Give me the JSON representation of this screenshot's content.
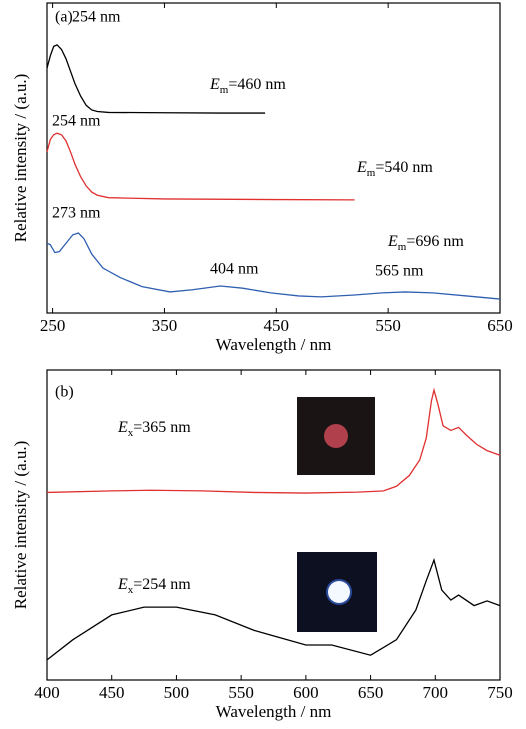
{
  "chart_data": [
    {
      "type": "line",
      "x_label": "Wavelength / nm",
      "y_label": "Relative intensity / (a.u.)",
      "xlim": [
        245,
        650
      ],
      "xticks": [
        250,
        350,
        450,
        550,
        650
      ],
      "ylim": [
        0,
        100
      ],
      "annotations": [
        "(a)",
        "254 nm",
        {
          "main": "E",
          "sub": "m",
          "rest": "=460 nm"
        },
        "254 nm",
        {
          "main": "E",
          "sub": "m",
          "rest": "=540 nm"
        },
        "273 nm",
        {
          "main": "E",
          "sub": "m",
          "rest": "=696 nm"
        },
        "404 nm",
        "565 nm"
      ],
      "series": [
        {
          "color": "#000000",
          "x": [
            245,
            248,
            251,
            254,
            258,
            262,
            266,
            270,
            275,
            280,
            285,
            290,
            300,
            350,
            400,
            440
          ],
          "values": [
            79,
            83,
            86,
            86.5,
            85,
            82,
            78,
            74,
            70,
            67,
            65.5,
            65,
            64.7,
            64.6,
            64.5,
            64.5
          ]
        },
        {
          "color": "#e03030",
          "x": [
            245,
            248,
            251,
            254,
            258,
            262,
            266,
            270,
            275,
            280,
            285,
            290,
            300,
            350,
            450,
            520
          ],
          "values": [
            52,
            56,
            57.5,
            58,
            57.5,
            55.5,
            52,
            48,
            44,
            41,
            39,
            38,
            37.2,
            36.8,
            36.6,
            36.5
          ]
        },
        {
          "color": "#2f5fb0",
          "x": [
            245,
            248,
            252,
            256,
            262,
            268,
            273,
            278,
            285,
            295,
            310,
            330,
            355,
            375,
            400,
            420,
            445,
            470,
            490,
            520,
            545,
            565,
            590,
            620,
            650
          ],
          "values": [
            22.5,
            22,
            19.5,
            19.8,
            22.5,
            25.2,
            25.8,
            24,
            19,
            14.5,
            11.5,
            8.5,
            6.8,
            7.5,
            8.7,
            8,
            6.5,
            5.5,
            5.2,
            5.8,
            6.5,
            6.8,
            6.5,
            5.5,
            4.5
          ]
        }
      ]
    },
    {
      "type": "line",
      "x_label": "Wavelength / nm",
      "y_label": "Relative intensity / (a.u.)",
      "xlim": [
        400,
        750
      ],
      "xticks": [
        400,
        450,
        500,
        550,
        600,
        650,
        700,
        750
      ],
      "ylim": [
        0,
        100
      ],
      "annotations": [
        "(b)",
        {
          "main": "E",
          "sub": "x",
          "rest": "=365 nm"
        },
        {
          "main": "E",
          "sub": "x",
          "rest": "=254 nm"
        }
      ],
      "series": [
        {
          "color": "#e03030",
          "x": [
            400,
            450,
            480,
            520,
            560,
            600,
            640,
            660,
            670,
            680,
            688,
            693,
            697,
            699,
            702,
            706,
            712,
            718,
            724,
            732,
            740,
            750
          ],
          "values": [
            60.5,
            61,
            61.2,
            61,
            60.5,
            60.3,
            60.6,
            61,
            62.5,
            66,
            71,
            78,
            90,
            93.5,
            89,
            82,
            80.5,
            81.5,
            79,
            76,
            74,
            72.5
          ]
        },
        {
          "color": "#000000",
          "x": [
            400,
            420,
            450,
            475,
            500,
            530,
            560,
            600,
            620,
            650,
            670,
            685,
            693,
            699,
            705,
            712,
            718,
            730,
            740,
            750
          ],
          "values": [
            6.5,
            13,
            21,
            23.5,
            23.5,
            21,
            16,
            11.3,
            11.3,
            8,
            13,
            22.6,
            32,
            38.7,
            29,
            25.8,
            27.4,
            24,
            25.5,
            24
          ]
        }
      ]
    }
  ]
}
